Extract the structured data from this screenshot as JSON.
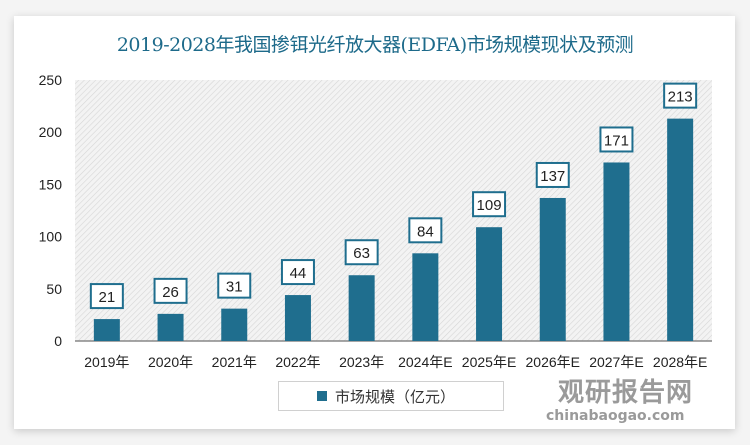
{
  "chart_data": {
    "type": "bar",
    "title": "2019-2028年我国掺铒光纤放大器(EDFA)市场规模现状及预测",
    "categories": [
      "2019年",
      "2020年",
      "2021年",
      "2022年",
      "2023年",
      "2024年E",
      "2025年E",
      "2026年E",
      "2027年E",
      "2028年E"
    ],
    "series": [
      {
        "name": "市场规模（亿元）",
        "values": [
          21,
          26,
          31,
          44,
          63,
          84,
          109,
          137,
          171,
          213
        ]
      }
    ],
    "ylim": [
      0,
      250
    ],
    "yticks": [
      0,
      50,
      100,
      150,
      200,
      250
    ],
    "grid": false,
    "legend": "bottom",
    "bar_color": "#1f6e8e",
    "background": "hatched"
  },
  "watermark": {
    "name": "观研报告网",
    "url": "chinabaogao.com"
  }
}
